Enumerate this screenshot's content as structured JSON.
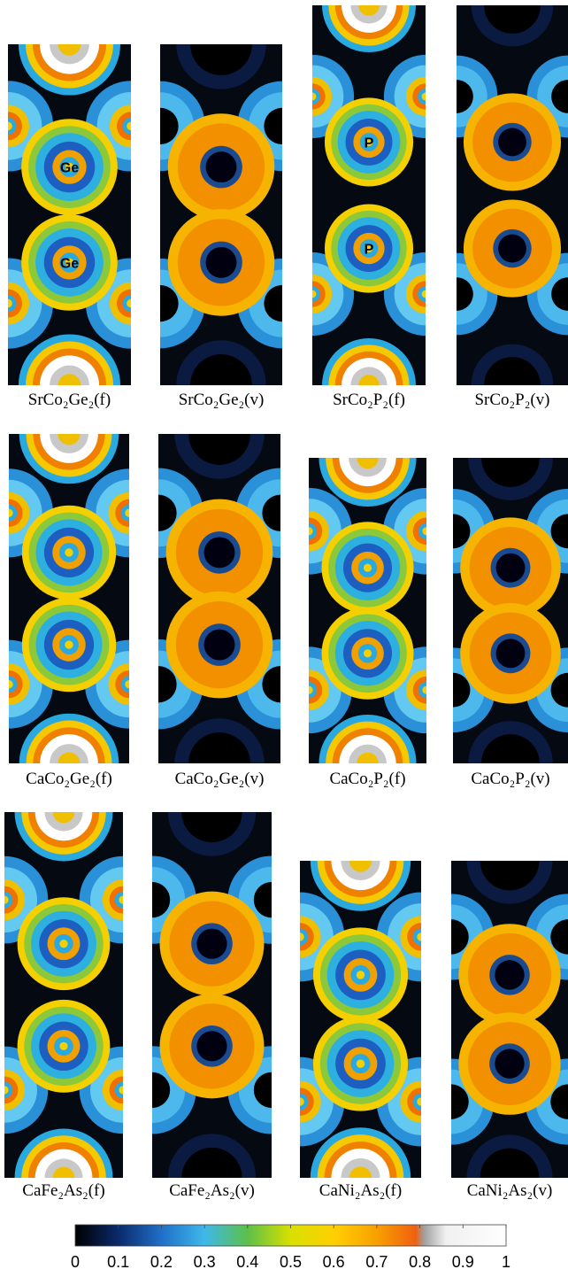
{
  "figure": {
    "panels": [
      {
        "label": "SrCo₂Ge₂(f)",
        "annotations": [
          "Ge",
          "Ge"
        ]
      },
      {
        "label": "SrCo₂Ge₂(v)"
      },
      {
        "label": "SrCo₂P₂(f)",
        "annotations": [
          "P",
          "P"
        ]
      },
      {
        "label": "SrCo₂P₂(v)"
      },
      {
        "label": "CaCo₂Ge₂(f)"
      },
      {
        "label": "CaCo₂Ge₂(v)"
      },
      {
        "label": "CaCo₂P₂(f)"
      },
      {
        "label": "CaCo₂P₂(v)"
      },
      {
        "label": "CaFe₂As₂(f)"
      },
      {
        "label": "CaFe₂As₂(v)"
      },
      {
        "label": "CaNi₂As₂(f)"
      },
      {
        "label": "CaNi₂As₂(v)"
      }
    ],
    "colorbar": {
      "lim": [
        0,
        1
      ],
      "ticks": [
        0,
        0.1,
        0.2,
        0.3,
        0.4,
        0.5,
        0.6,
        0.7,
        0.8,
        0.9,
        1
      ]
    }
  }
}
